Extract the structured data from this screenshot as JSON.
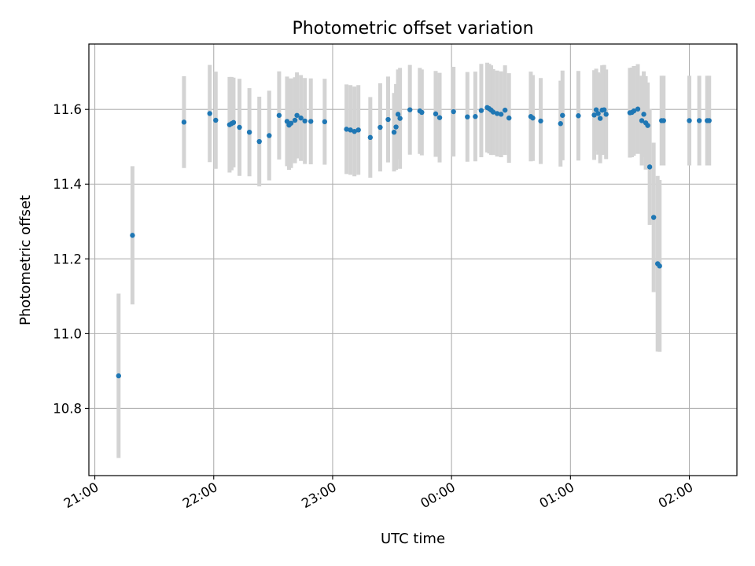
{
  "chart_data": {
    "type": "scatter",
    "title": "Photometric offset variation",
    "xlabel": "UTC time",
    "ylabel": "Photometric offset",
    "xlim": [
      "20:57",
      "02:24"
    ],
    "ylim": [
      10.62,
      11.775
    ],
    "x_ticks": [
      "21:00",
      "22:00",
      "23:00",
      "00:00",
      "01:00",
      "02:00"
    ],
    "y_ticks": [
      10.8,
      11.0,
      11.2,
      11.4,
      11.6
    ],
    "grid": true,
    "point_color": "#1f77b4",
    "errorbar_color": "#d3d3d3",
    "series": [
      {
        "x": [
          "21:12",
          "21:19",
          "21:45",
          "21:58",
          "22:01",
          "22:08",
          "22:09",
          "22:10",
          "22:13",
          "22:18",
          "22:23",
          "22:28",
          "22:33",
          "22:37",
          "22:38",
          "22:39",
          "22:41",
          "22:42",
          "22:44",
          "22:46",
          "22:49",
          "22:56",
          "23:07",
          "23:09",
          "23:11",
          "23:13",
          "23:19",
          "23:24",
          "23:28",
          "23:31",
          "23:32",
          "23:33",
          "23:34",
          "23:39",
          "23:44",
          "23:45",
          "23:52",
          "23:54",
          "24:01",
          "24:08",
          "24:12",
          "24:15",
          "24:18",
          "24:19",
          "24:20",
          "24:21",
          "24:23",
          "24:25",
          "24:27",
          "24:29",
          "24:40",
          "24:41",
          "24:45",
          "24:55",
          "24:56",
          "25:04",
          "25:12",
          "25:13",
          "25:14",
          "25:15",
          "25:16",
          "25:17",
          "25:18",
          "25:30",
          "25:31",
          "25:32",
          "25:34",
          "25:36",
          "25:37",
          "25:38",
          "25:39",
          "25:40",
          "25:42",
          "25:44",
          "25:45",
          "25:46",
          "25:47",
          "26:00",
          "26:05",
          "26:09",
          "26:10"
        ],
        "y": [
          10.887,
          11.263,
          11.566,
          11.589,
          11.571,
          11.559,
          11.562,
          11.565,
          11.552,
          11.539,
          11.514,
          11.53,
          11.584,
          11.568,
          11.558,
          11.563,
          11.571,
          11.584,
          11.577,
          11.569,
          11.568,
          11.567,
          11.547,
          11.545,
          11.541,
          11.545,
          11.525,
          11.552,
          11.573,
          11.539,
          11.553,
          11.587,
          11.576,
          11.599,
          11.596,
          11.592,
          11.588,
          11.578,
          11.594,
          11.58,
          11.581,
          11.597,
          11.605,
          11.602,
          11.598,
          11.593,
          11.589,
          11.587,
          11.598,
          11.577,
          11.581,
          11.577,
          11.569,
          11.562,
          11.584,
          11.583,
          11.585,
          11.599,
          11.589,
          11.576,
          11.598,
          11.599,
          11.587,
          11.591,
          11.592,
          11.596,
          11.601,
          11.57,
          11.587,
          11.564,
          11.557,
          11.446,
          11.311,
          11.187,
          11.181,
          11.57,
          11.57,
          11.57,
          11.57,
          11.57,
          11.57
        ],
        "yerr": [
          0.22,
          0.185,
          0.123,
          0.13,
          0.13,
          0.128,
          0.125,
          0.12,
          0.13,
          0.118,
          0.12,
          0.12,
          0.118,
          0.12,
          0.12,
          0.12,
          0.115,
          0.115,
          0.115,
          0.115,
          0.115,
          0.115,
          0.12,
          0.12,
          0.12,
          0.12,
          0.108,
          0.118,
          0.115,
          0.105,
          0.115,
          0.12,
          0.135,
          0.12,
          0.115,
          0.115,
          0.115,
          0.12,
          0.12,
          0.12,
          0.12,
          0.125,
          0.12,
          0.12,
          0.12,
          0.115,
          0.115,
          0.115,
          0.12,
          0.12,
          0.12,
          0.115,
          0.115,
          0.115,
          0.12,
          0.12,
          0.12,
          0.11,
          0.11,
          0.12,
          0.12,
          0.12,
          0.12,
          0.12,
          0.12,
          0.12,
          0.12,
          0.12,
          0.115,
          0.125,
          0.115,
          0.155,
          0.2,
          0.235,
          0.23,
          0.12,
          0.12,
          0.12,
          0.12,
          0.12,
          0.12
        ]
      }
    ]
  }
}
